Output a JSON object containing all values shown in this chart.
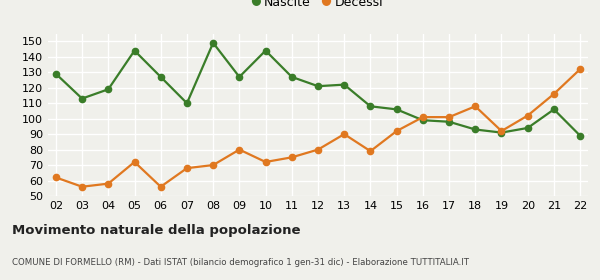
{
  "years": [
    "02",
    "03",
    "04",
    "05",
    "06",
    "07",
    "08",
    "09",
    "10",
    "11",
    "12",
    "13",
    "14",
    "15",
    "16",
    "17",
    "18",
    "19",
    "20",
    "21",
    "22"
  ],
  "nascite": [
    129,
    113,
    119,
    144,
    127,
    110,
    149,
    127,
    144,
    127,
    121,
    122,
    108,
    106,
    99,
    98,
    93,
    91,
    94,
    106,
    89
  ],
  "decessi": [
    62,
    56,
    58,
    72,
    56,
    68,
    70,
    80,
    72,
    75,
    80,
    90,
    79,
    92,
    101,
    101,
    108,
    92,
    102,
    116,
    132
  ],
  "nascite_color": "#3a7d29",
  "decessi_color": "#e07820",
  "bg_color": "#f0f0eb",
  "grid_color": "#ffffff",
  "ylim": [
    50,
    155
  ],
  "yticks": [
    50,
    60,
    70,
    80,
    90,
    100,
    110,
    120,
    130,
    140,
    150
  ],
  "title": "Movimento naturale della popolazione",
  "subtitle": "COMUNE DI FORMELLO (RM) - Dati ISTAT (bilancio demografico 1 gen-31 dic) - Elaborazione TUTTITALIA.IT",
  "legend_nascite": "Nascite",
  "legend_decessi": "Decessi",
  "marker_size": 4.5,
  "line_width": 1.6
}
